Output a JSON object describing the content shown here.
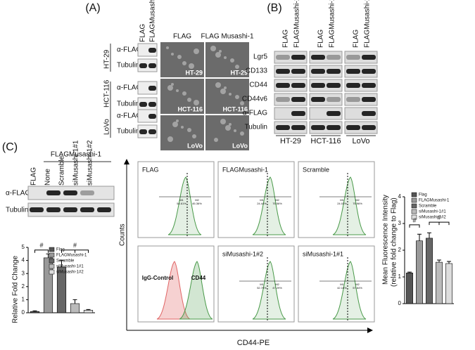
{
  "panel_a": {
    "label": "(A)",
    "lanes": [
      "FLAG",
      "FLAGMusashi-1"
    ],
    "image_headers": [
      "FLAG",
      "FLAG Musashi-1"
    ],
    "cell_lines": [
      {
        "name": "HT-29",
        "rows": [
          "α-FLAG",
          "Tubulin"
        ]
      },
      {
        "name": "HCT-116",
        "rows": [
          "α-FLAG",
          "Tubulin"
        ]
      },
      {
        "name": "LoVo",
        "rows": [
          "α-FLAG",
          "Tubulin"
        ]
      }
    ],
    "image_labels": [
      "HT-29",
      "HCT-116",
      "LoVo"
    ]
  },
  "panel_b": {
    "label": "(B)",
    "lanes": [
      "FLAG",
      "FLAGMusashi-1",
      "FLAG",
      "FLAGMusashi-1",
      "FLAG",
      "FLAGMusashi-1"
    ],
    "rows": [
      "Lgr5",
      "CD133",
      "CD44",
      "CD44v6",
      "α-FLAG",
      "Tubulin"
    ],
    "cell_lines": [
      "HT-29",
      "HCT-116",
      "LoVo"
    ]
  },
  "panel_c": {
    "label": "(C)",
    "group": "FLAGMusashi-1",
    "lanes": [
      "FLAG",
      "None",
      "Scramble",
      "siMusashi-1#1",
      "siMusashi-1#2"
    ],
    "rows": [
      "α-FLAG",
      "Tubulin"
    ],
    "flow": {
      "y_label": "Counts",
      "x_label": "CD44-PE",
      "gates": [
        "M1",
        "M2"
      ],
      "plots": [
        {
          "title": "FLAG",
          "m1": "54.61%",
          "m2": "45.36%"
        },
        {
          "title": "FLAGMusashi-1",
          "m1": "24.44%",
          "m2": "75.56%"
        },
        {
          "title": "Scramble",
          "m1": "24.03%",
          "m2": "75.96%"
        },
        {
          "title": "IgG-Control",
          "title2": "CD44"
        },
        {
          "title": "siMusashi-1#2",
          "m1": "52.70%",
          "m2": "47.29%"
        },
        {
          "title": "siMusashi-1#1",
          "m1": "42.16%",
          "m2": "57.84%"
        }
      ]
    }
  },
  "chart_data": [
    {
      "type": "bar",
      "y_label": "Relative Fold Change",
      "categories": [
        "Flag",
        "FLAGMusashi-1",
        "Scramble",
        "siMusashi-1#1",
        "siMusashi-1#2"
      ],
      "values": [
        0.1,
        4.2,
        3.5,
        0.7,
        0.2
      ],
      "errors": [
        0.05,
        0.3,
        0.5,
        0.3,
        0.05
      ],
      "colors": [
        "#555555",
        "#999999",
        "#666666",
        "#bbbbbb",
        "#dddddd"
      ],
      "ylim": [
        0,
        5
      ],
      "yticks": [
        0,
        1,
        2,
        3,
        4,
        5
      ],
      "annotations": [
        "#",
        "#"
      ]
    },
    {
      "type": "bar",
      "y_label": "Mean Fluorescence Intensity",
      "y_label2": "(relative fold change to Flag)",
      "categories": [
        "Flag",
        "FLAGMusashi-1",
        "Scramble",
        "siMusashi-1#1",
        "siMusashi-1#2"
      ],
      "values": [
        1.15,
        2.35,
        2.45,
        1.55,
        1.5
      ],
      "errors": [
        0.03,
        0.25,
        0.2,
        0.08,
        0.08
      ],
      "colors": [
        "#555555",
        "#999999",
        "#666666",
        "#bbbbbb",
        "#dddddd"
      ],
      "ylim": [
        0,
        4
      ],
      "yticks": [
        0,
        1,
        2,
        3,
        4
      ],
      "annotations": [
        "#",
        "#"
      ]
    }
  ]
}
